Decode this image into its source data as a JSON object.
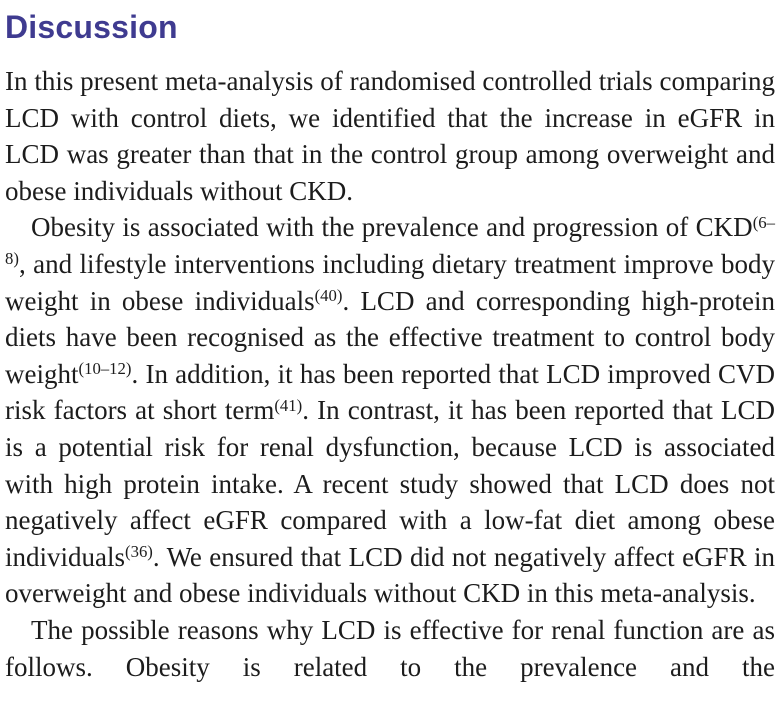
{
  "heading": {
    "text": "Discussion",
    "color": "#3f3b90"
  },
  "body": {
    "background": "#ffffff",
    "text_color": "#1c1c1c",
    "paragraphs": [
      {
        "indent": false,
        "justify_last_line": false,
        "segments": [
          {
            "type": "text",
            "value": "In this present meta-analysis of randomised controlled trials comparing LCD with control diets, we identified that the increase in eGFR in LCD was greater than that in the control group among overweight and obese individuals without CKD."
          }
        ]
      },
      {
        "indent": true,
        "justify_last_line": false,
        "segments": [
          {
            "type": "text",
            "value": "Obesity is associated with the prevalence and progression of CKD"
          },
          {
            "type": "sup",
            "value": "(6–8)"
          },
          {
            "type": "text",
            "value": ", and lifestyle interventions including dietary treatment improve body weight in obese individuals"
          },
          {
            "type": "sup",
            "value": "(40)"
          },
          {
            "type": "text",
            "value": ". LCD and corresponding high-protein diets have been recognised as the effective treatment to control body weight"
          },
          {
            "type": "sup",
            "value": "(10–12)"
          },
          {
            "type": "text",
            "value": ". In addition, it has been reported that LCD improved CVD risk factors at short term"
          },
          {
            "type": "sup",
            "value": "(41)"
          },
          {
            "type": "text",
            "value": ". In contrast, it has been reported that LCD is a potential risk for renal dysfunction, because LCD is associated with high protein intake. A recent study showed that LCD does not negatively affect eGFR compared with a low-fat diet among obese individuals"
          },
          {
            "type": "sup",
            "value": "(36)"
          },
          {
            "type": "text",
            "value": ". We ensured that LCD did not negatively affect eGFR in overweight and obese individuals without CKD in this meta-analysis."
          }
        ]
      },
      {
        "indent": true,
        "justify_last_line": true,
        "segments": [
          {
            "type": "text",
            "value": "The possible reasons why LCD is effective for renal function are as follows. Obesity is related to the prevalence and the"
          }
        ]
      }
    ]
  }
}
